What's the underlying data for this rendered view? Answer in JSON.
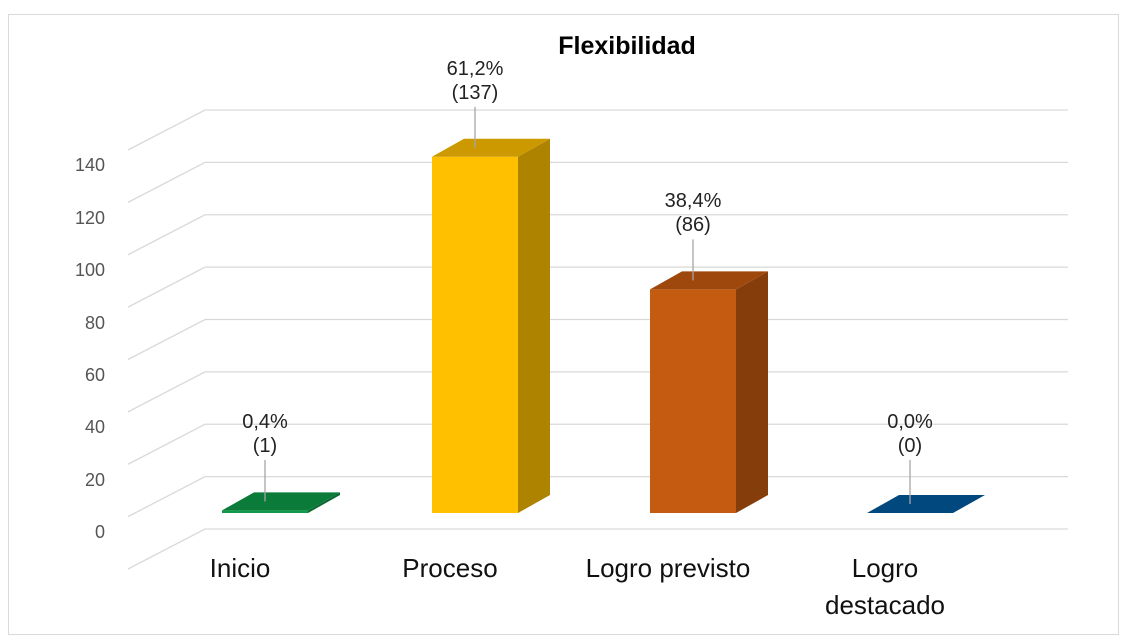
{
  "chart_data": {
    "type": "bar3d",
    "title": "Flexibilidad",
    "categories": [
      "Inicio",
      "Proceso",
      "Logro previsto",
      "Logro destacado"
    ],
    "values": [
      1,
      137,
      86,
      0
    ],
    "value_labels": [
      "0,4%\n(1)",
      "61,2%\n(137)",
      "38,4%\n(86)",
      "0,0%\n(0)"
    ],
    "colors": [
      "#0e9a48",
      "#ffc000",
      "#c55a11",
      "#005a9e"
    ],
    "ylim": [
      0,
      160
    ],
    "yticks": [
      0,
      20,
      40,
      60,
      80,
      100,
      120,
      140
    ],
    "grid": true
  }
}
